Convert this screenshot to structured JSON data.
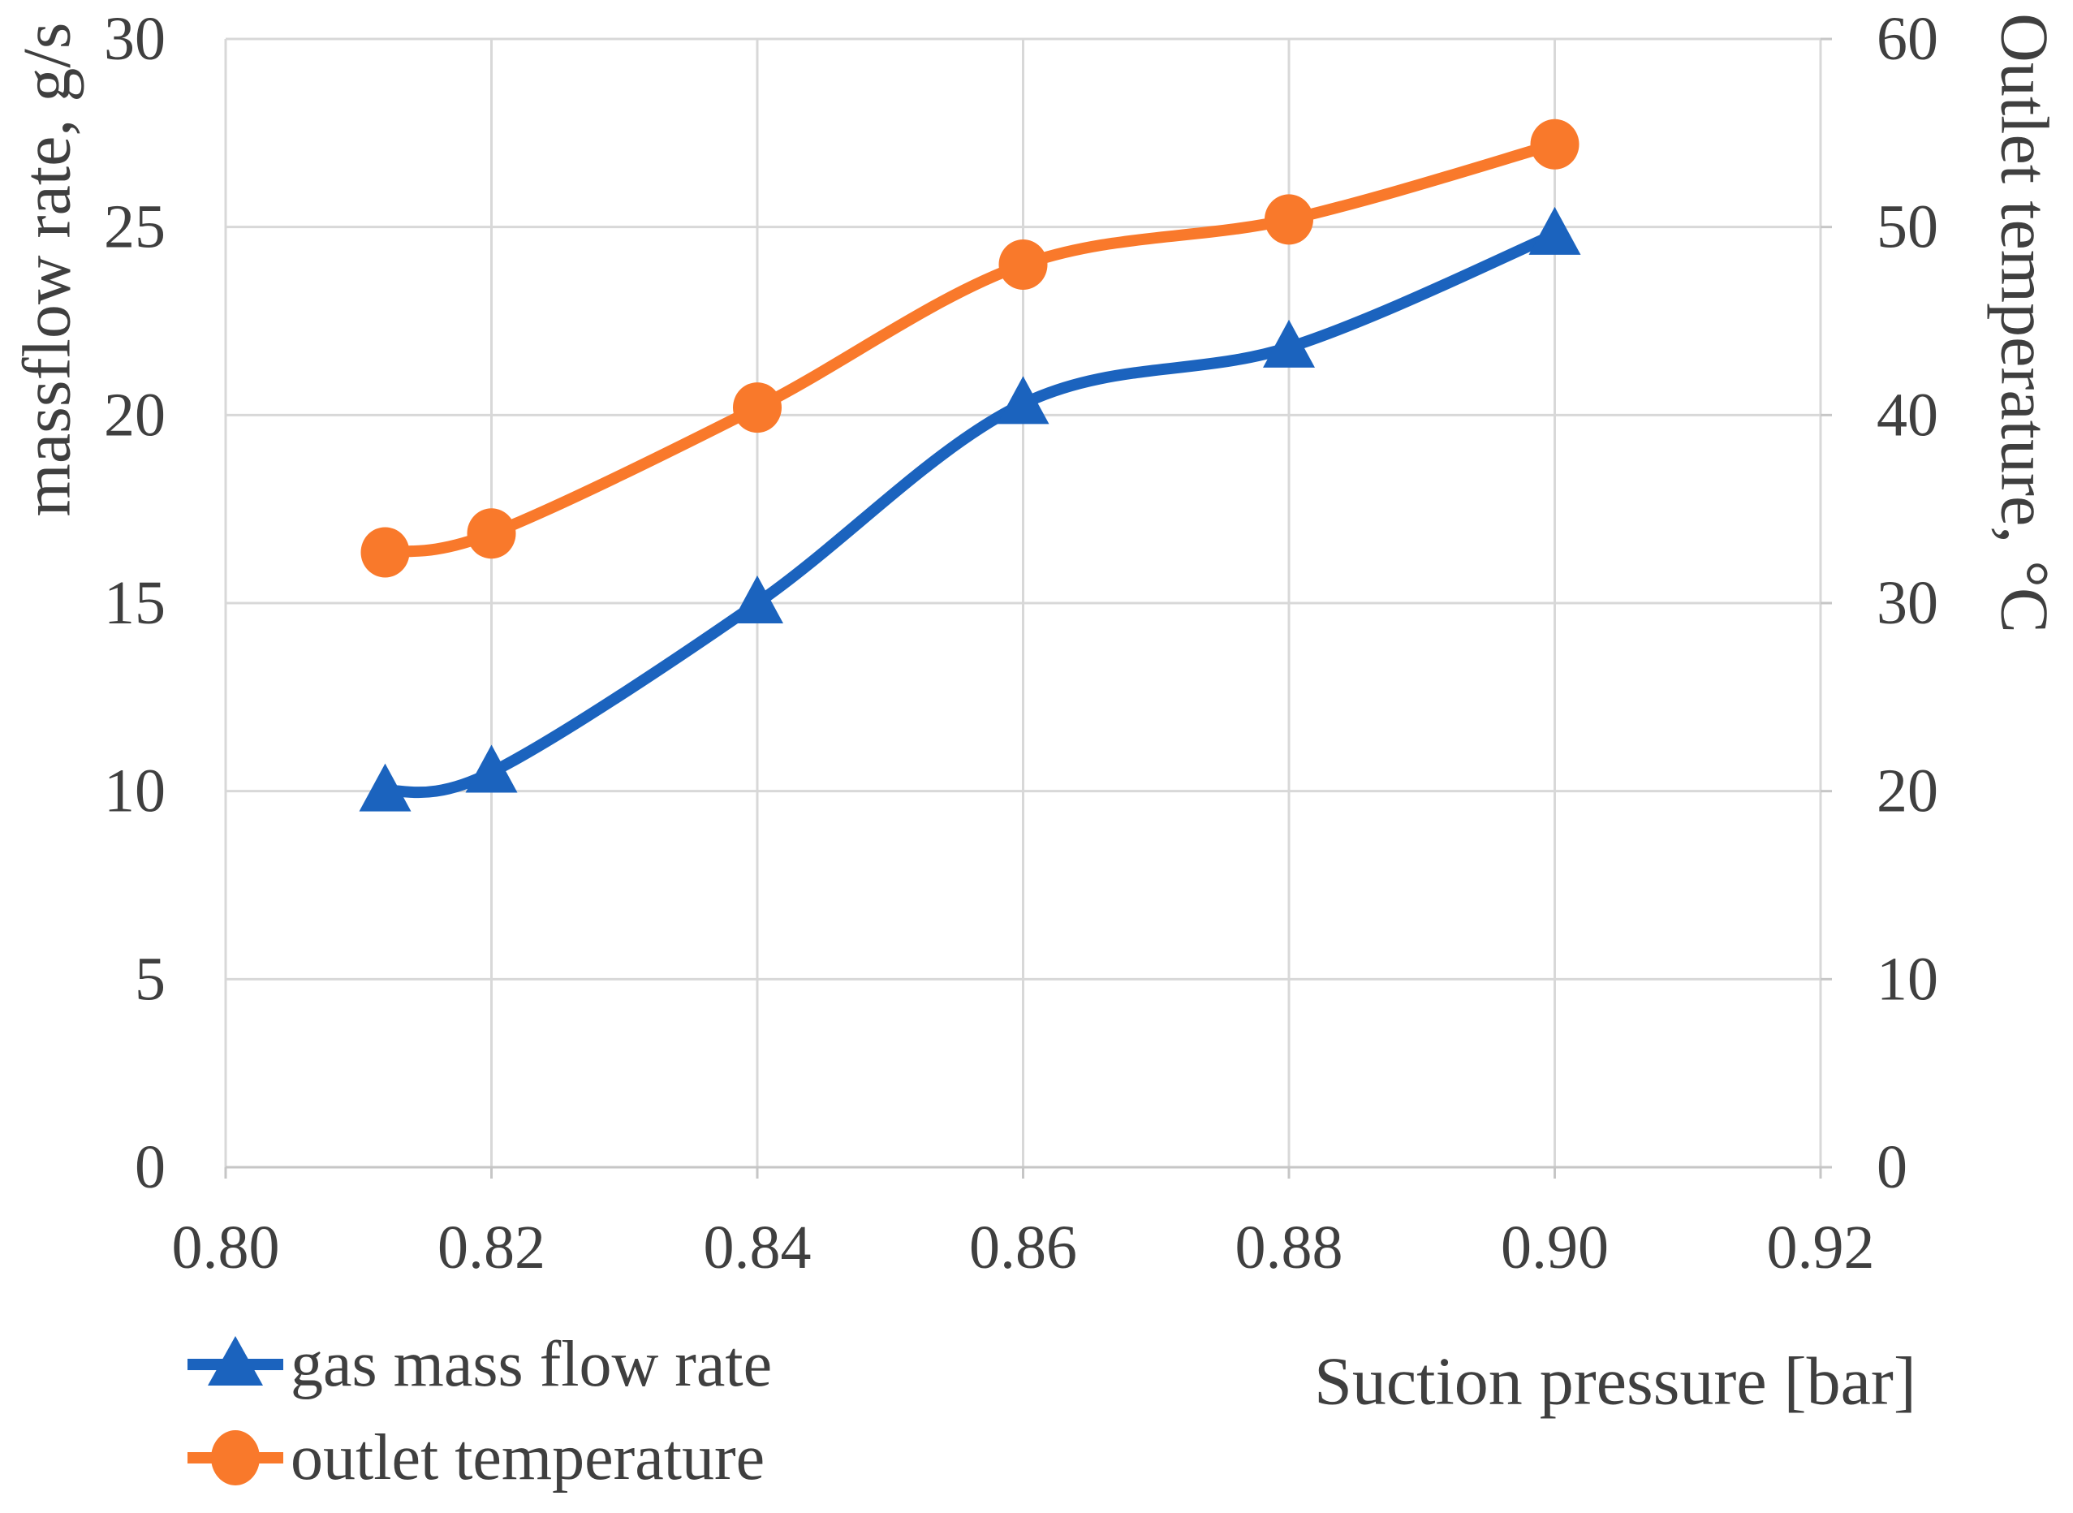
{
  "chart_data": {
    "type": "line",
    "title": "",
    "xlabel": "Suction pressure [bar]",
    "x_axis": {
      "min": 0.8,
      "max": 0.92,
      "tick_values": [
        0.8,
        0.82,
        0.84,
        0.86,
        0.88,
        0.9,
        0.92
      ],
      "tick_labels": [
        "0.80",
        "0.82",
        "0.84",
        "0.86",
        "0.88",
        "0.90",
        "0.92"
      ]
    },
    "left_axis": {
      "label": "massflow rate, g/s",
      "min": 0,
      "max": 30,
      "tick_values": [
        0,
        5,
        10,
        15,
        20,
        25,
        30
      ],
      "tick_labels": [
        "0",
        "5",
        "10",
        "15",
        "20",
        "25",
        "30"
      ]
    },
    "right_axis": {
      "label": "Outlet temperature, °C",
      "min": 0,
      "max": 60,
      "tick_values": [
        0,
        10,
        20,
        30,
        40,
        50,
        60
      ],
      "tick_labels": [
        "0",
        "10",
        "20",
        "30",
        "40",
        "50",
        "60"
      ]
    },
    "x": [
      0.812,
      0.82,
      0.84,
      0.86,
      0.88,
      0.9
    ],
    "series": [
      {
        "name": "gas mass flow rate",
        "axis": "left",
        "color": "#1B63BE",
        "marker": "triangle",
        "values": [
          10.0,
          10.5,
          15.0,
          20.3,
          21.8,
          24.8
        ]
      },
      {
        "name": "outlet temperature",
        "axis": "right",
        "color": "#F9792B",
        "marker": "circle",
        "values": [
          32.7,
          33.7,
          40.4,
          48.0,
          50.4,
          54.4
        ]
      }
    ],
    "grid": true,
    "smoothed_lines": true,
    "legend_position": "bottom-left",
    "colors": {
      "grid": "#D8D8D8",
      "axis": "#C6C6C6",
      "text": "#3F3F3F"
    }
  }
}
